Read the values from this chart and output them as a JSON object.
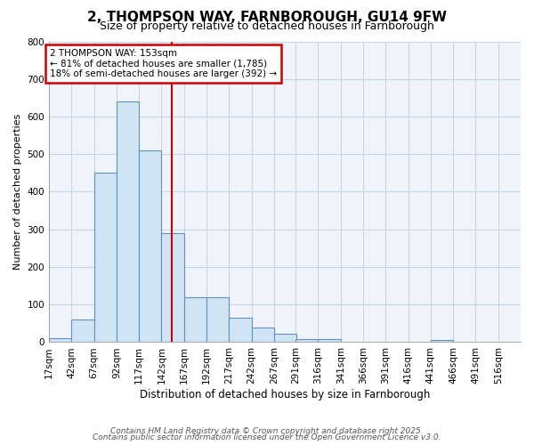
{
  "title1": "2, THOMPSON WAY, FARNBOROUGH, GU14 9FW",
  "title2": "Size of property relative to detached houses in Farnborough",
  "xlabel": "Distribution of detached houses by size in Farnborough",
  "ylabel": "Number of detached properties",
  "bin_edges": [
    17,
    42,
    67,
    92,
    117,
    142,
    167,
    192,
    217,
    242,
    267,
    291,
    316,
    341,
    366,
    391,
    416,
    441,
    466,
    491,
    516
  ],
  "bar_heights": [
    10,
    60,
    450,
    640,
    510,
    290,
    120,
    120,
    65,
    40,
    22,
    8,
    8,
    0,
    0,
    0,
    0,
    5,
    0,
    0
  ],
  "bar_color": "#d0e4f5",
  "bar_edge_color": "#6090c0",
  "vline_x": 153,
  "vline_color": "#cc0000",
  "ylim": [
    0,
    800
  ],
  "yticks": [
    0,
    100,
    200,
    300,
    400,
    500,
    600,
    700,
    800
  ],
  "annotation_title": "2 THOMPSON WAY: 153sqm",
  "annotation_line1": "← 81% of detached houses are smaller (1,785)",
  "annotation_line2": "18% of semi-detached houses are larger (392) →",
  "annotation_box_color": "#cc0000",
  "footer1": "Contains HM Land Registry data © Crown copyright and database right 2025.",
  "footer2": "Contains public sector information licensed under the Open Government Licence v3.0.",
  "bg_color": "#ffffff",
  "plot_bg_color": "#f0f4fa",
  "grid_color": "#c8d4e8",
  "tick_labels": [
    "17sqm",
    "42sqm",
    "67sqm",
    "92sqm",
    "117sqm",
    "142sqm",
    "167sqm",
    "192sqm",
    "217sqm",
    "242sqm",
    "267sqm",
    "291sqm",
    "316sqm",
    "341sqm",
    "366sqm",
    "391sqm",
    "416sqm",
    "441sqm",
    "466sqm",
    "491sqm",
    "516sqm"
  ]
}
